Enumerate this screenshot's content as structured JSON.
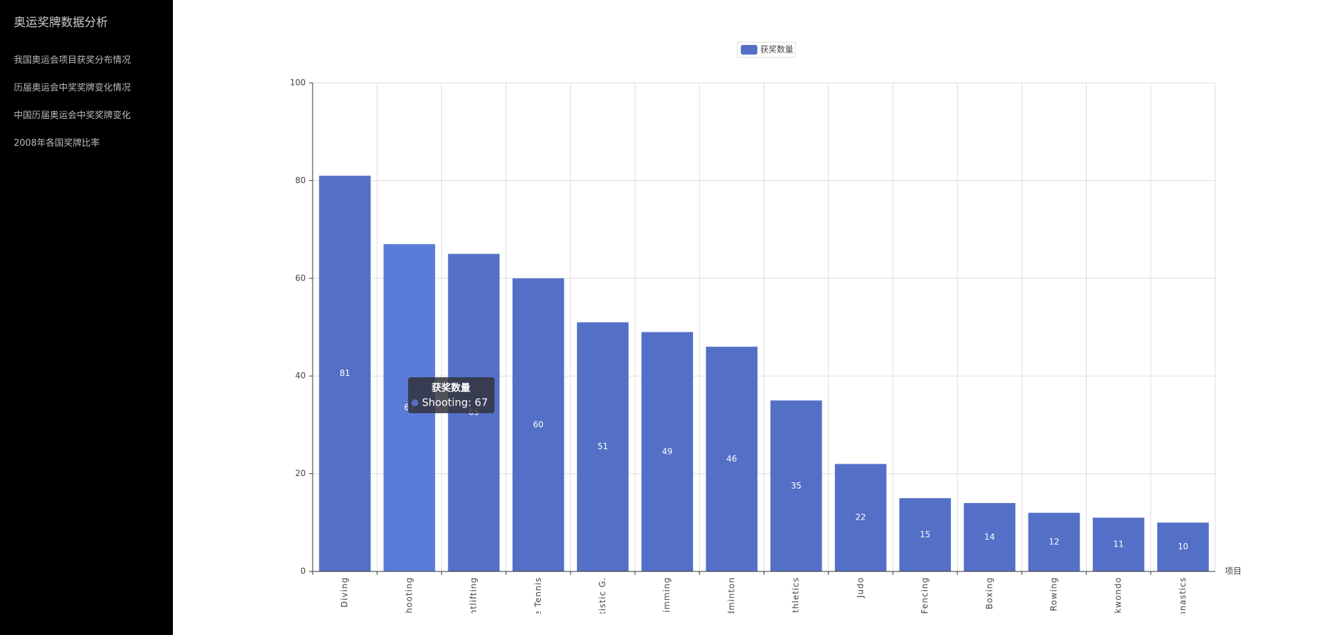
{
  "sidebar": {
    "title": "奥运奖牌数据分析",
    "items": [
      "我国奥运会项目获奖分布情况",
      "历届奥运会中奖奖牌变化情况",
      "中国历届奥运会中奖奖牌变化",
      "2008年各国奖牌比率"
    ]
  },
  "chart_data": {
    "type": "bar",
    "x_label": "项目",
    "categories": [
      "Diving",
      "Shooting",
      "Weightlifting",
      "Table Tennis",
      "Artistic G.",
      "Swimming",
      "Badminton",
      "Athletics",
      "Judo",
      "Fencing",
      "Boxing",
      "Rowing",
      "Taekwondo",
      "Gymnastics"
    ],
    "series": [
      {
        "name": "获奖数量",
        "color": "#5470c6",
        "values": [
          81,
          67,
          65,
          60,
          51,
          49,
          46,
          35,
          22,
          15,
          14,
          12,
          11,
          10
        ]
      }
    ],
    "highlight_color": "#5b7bd9",
    "ylim": [
      0,
      100
    ],
    "yticks": [
      0,
      20,
      40,
      60,
      80,
      100
    ],
    "grid": true,
    "legend": "top",
    "tooltip": {
      "title": "获奖数量",
      "text": "Shooting: 67"
    }
  }
}
